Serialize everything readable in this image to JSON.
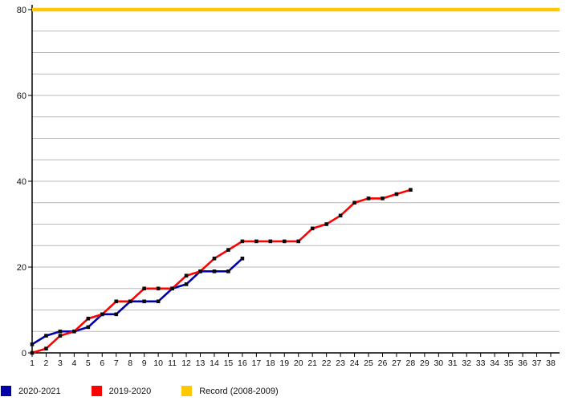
{
  "chart_data": {
    "type": "line",
    "title": "",
    "xlabel": "",
    "ylabel": "",
    "xlim": [
      1,
      38
    ],
    "ylim": [
      0,
      80
    ],
    "x_ticks": [
      1,
      2,
      3,
      4,
      5,
      6,
      7,
      8,
      9,
      10,
      11,
      12,
      13,
      14,
      15,
      16,
      17,
      18,
      19,
      20,
      21,
      22,
      23,
      24,
      25,
      26,
      27,
      28,
      29,
      30,
      31,
      32,
      33,
      34,
      35,
      36,
      37,
      38
    ],
    "y_ticks": [
      0,
      20,
      40,
      60,
      80
    ],
    "grid": true,
    "grid_step": 5,
    "grid_color": "#b9b9b9",
    "axis_color": "#000000",
    "marker_color": "#0a0a0a",
    "legend_position": "bottom-left",
    "series": [
      {
        "name": "2020-2021",
        "color": "#0000A8",
        "marker": "square",
        "x": [
          1,
          2,
          3,
          4,
          5,
          6,
          7,
          8,
          9,
          10,
          11,
          12,
          13,
          14,
          15,
          16
        ],
        "values": [
          2,
          4,
          5,
          5,
          6,
          9,
          9,
          12,
          12,
          12,
          15,
          16,
          19,
          19,
          19,
          22
        ]
      },
      {
        "name": "2019-2020",
        "color": "#FF0000",
        "marker": "square",
        "x": [
          1,
          2,
          3,
          4,
          5,
          6,
          7,
          8,
          9,
          10,
          11,
          12,
          13,
          14,
          15,
          16,
          17,
          18,
          19,
          20,
          21,
          22,
          23,
          24,
          25,
          26,
          27,
          28
        ],
        "values": [
          0,
          1,
          4,
          5,
          8,
          9,
          12,
          12,
          15,
          15,
          15,
          18,
          19,
          22,
          24,
          26,
          26,
          26,
          26,
          26,
          29,
          30,
          32,
          35,
          36,
          36,
          37,
          38
        ]
      },
      {
        "name": "Record (2008-2009)",
        "color": "#FFC800",
        "style": "hline",
        "value": 80
      }
    ]
  }
}
